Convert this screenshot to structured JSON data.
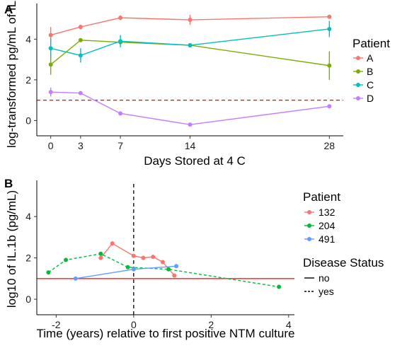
{
  "chart_data": [
    {
      "type": "line",
      "panel_label": "A",
      "xlabel": "Days Stored at 4 C",
      "ylabel": "log-transformed pg/mL of IL",
      "xticks": [
        0,
        3,
        7,
        14,
        28
      ],
      "yticks": [
        0,
        2,
        4
      ],
      "xlim": [
        -1.4,
        29.4
      ],
      "ylim": [
        -0.75,
        5.75
      ],
      "grid": false,
      "legend": {
        "title": "Patient",
        "placement": "right"
      },
      "reference_line": {
        "y": 1,
        "color": "#ff0000",
        "style": "dashed"
      },
      "x": [
        0,
        3,
        7,
        14,
        28
      ],
      "series": [
        {
          "name": "A",
          "color": "#f8766d",
          "values": [
            4.2,
            4.6,
            5.05,
            4.95,
            5.1
          ],
          "errors": [
            0.4,
            0.12,
            0.12,
            0.25,
            0.1
          ]
        },
        {
          "name": "B",
          "color": "#7cae00",
          "values": [
            2.75,
            3.95,
            3.85,
            3.7,
            2.7
          ],
          "errors": [
            0.5,
            0.1,
            0.1,
            0.1,
            0.7
          ]
        },
        {
          "name": "C",
          "color": "#00bfc4",
          "values": [
            3.55,
            3.2,
            3.9,
            3.7,
            4.5
          ],
          "errors": [
            0.5,
            0.35,
            0.3,
            0.1,
            0.4
          ]
        },
        {
          "name": "D",
          "color": "#c77cff",
          "values": [
            1.4,
            1.35,
            0.35,
            -0.2,
            0.7
          ],
          "errors": [
            0.22,
            0.1,
            0.08,
            0.06,
            0.08
          ]
        }
      ]
    },
    {
      "type": "line",
      "panel_label": "B",
      "xlabel": "Time (years) relative to first positive NTM culture",
      "ylabel": "log10 of IL.1b (pg/mL)",
      "xticks": [
        -2,
        0,
        2,
        4
      ],
      "yticks": [
        0,
        2,
        4
      ],
      "xlim": [
        -2.5,
        4.15
      ],
      "ylim": [
        -0.75,
        5.75
      ],
      "grid": false,
      "reference_line_h": {
        "y": 1,
        "color": "#ff0000",
        "style": "solid"
      },
      "reference_line_v": {
        "x": 0,
        "color": "#000000",
        "style": "dashed"
      },
      "legend": [
        {
          "title": "Patient",
          "entries": [
            {
              "label": "132",
              "color": "#f8766d"
            },
            {
              "label": "204",
              "color": "#00ba38"
            },
            {
              "label": "491",
              "color": "#619cff"
            }
          ]
        },
        {
          "title": "Disease Status",
          "entries": [
            {
              "label": "no",
              "style": "solid"
            },
            {
              "label": "yes",
              "style": "dashed"
            }
          ]
        }
      ],
      "series": [
        {
          "name": "132",
          "color": "#f8766d",
          "style": "solid",
          "points": [
            [
              -0.85,
              2.0
            ],
            [
              -0.55,
              2.7
            ],
            [
              0.0,
              2.1
            ],
            [
              0.25,
              2.0
            ],
            [
              0.5,
              2.05
            ],
            [
              0.75,
              1.8
            ],
            [
              1.05,
              1.15
            ]
          ]
        },
        {
          "name": "204",
          "color": "#00ba38",
          "style": "dashed",
          "points": [
            [
              -2.2,
              1.3
            ],
            [
              -1.75,
              1.9
            ],
            [
              -0.85,
              2.2
            ],
            [
              -0.15,
              1.55
            ],
            [
              0.9,
              1.45
            ],
            [
              3.75,
              0.6
            ]
          ]
        },
        {
          "name": "491",
          "color": "#619cff",
          "style": "solid",
          "points": [
            [
              -1.5,
              1.0
            ],
            [
              0.0,
              1.45
            ],
            [
              1.1,
              1.6
            ]
          ]
        }
      ]
    }
  ]
}
